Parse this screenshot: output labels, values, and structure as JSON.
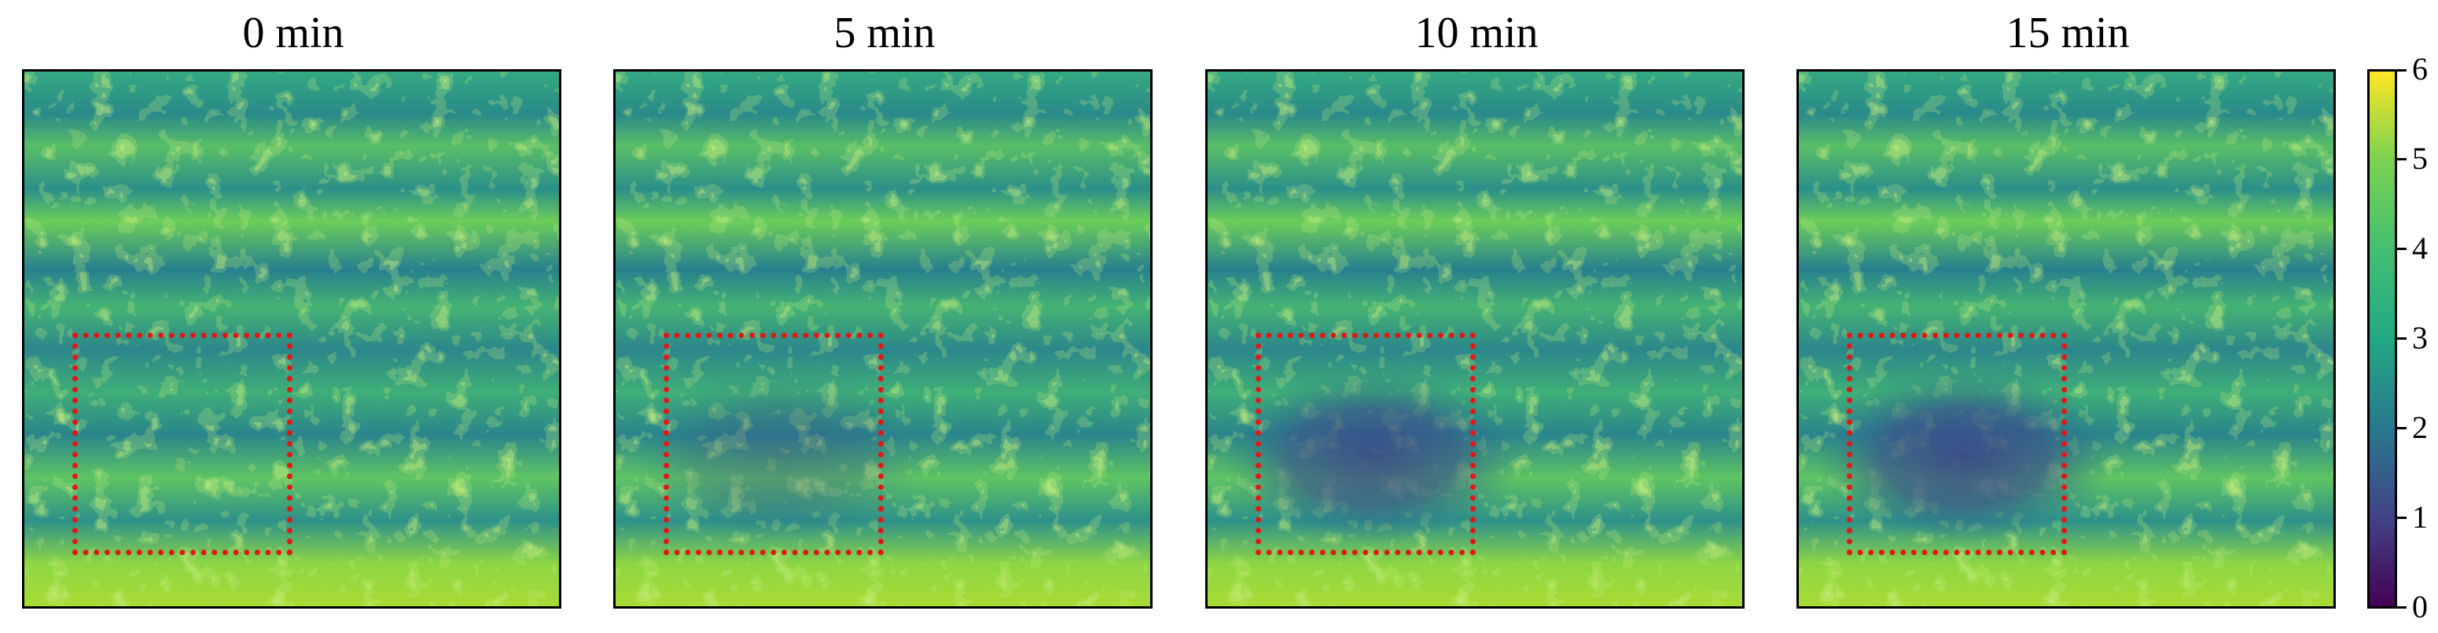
{
  "panels": [
    {
      "title": "0 min",
      "depression": 0.0
    },
    {
      "title": "5 min",
      "depression": 0.35
    },
    {
      "title": "10 min",
      "depression": 0.8
    },
    {
      "title": "15 min",
      "depression": 0.85
    }
  ],
  "colorbar": {
    "colormap": "viridis",
    "range": [
      0,
      6
    ],
    "ticks": [
      "0",
      "1",
      "2",
      "3",
      "4",
      "5",
      "6"
    ]
  },
  "colors": {
    "roi_box": "#e01818",
    "viridis_low": "#440154",
    "viridis_mid": "#21918c",
    "viridis_high": "#fde725"
  }
}
